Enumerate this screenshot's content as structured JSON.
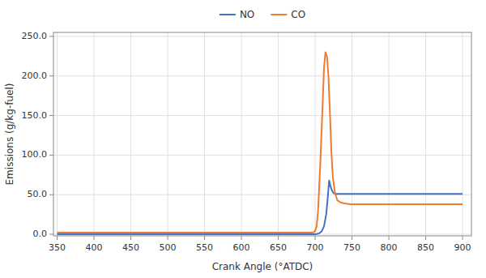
{
  "chart_data": {
    "type": "line",
    "xlabel": "Crank Angle (°ATDC)",
    "ylabel": "Emissions (g/kg-fuel)",
    "xlim": [
      345,
      912
    ],
    "ylim": [
      -2,
      255
    ],
    "xticks": [
      350,
      400,
      450,
      500,
      550,
      600,
      650,
      700,
      750,
      800,
      850,
      900
    ],
    "yticks": [
      {
        "value": 0.0,
        "label": "0.0"
      },
      {
        "value": 50.0,
        "label": "50.0"
      },
      {
        "value": 100.0,
        "label": "100.0"
      },
      {
        "value": 150.0,
        "label": "150.0"
      },
      {
        "value": 200.0,
        "label": "200.0"
      },
      {
        "value": 250.0,
        "label": "250.0"
      }
    ],
    "grid": true,
    "legend": "top",
    "series": [
      {
        "name": "NO",
        "color": "#4472C4",
        "x": [
          350,
          690,
          696,
          700,
          703,
          706,
          709,
          712,
          715,
          717,
          719,
          721,
          723,
          725,
          728,
          732,
          738,
          745,
          760,
          780,
          800,
          850,
          900
        ],
        "values": [
          0,
          0,
          0,
          0,
          0.5,
          1.5,
          4,
          10,
          25,
          45,
          68,
          60,
          55,
          52,
          51,
          51,
          51,
          51,
          51,
          51,
          51,
          51,
          51
        ]
      },
      {
        "name": "CO",
        "color": "#ED7D31",
        "x": [
          350,
          690,
          695,
          698,
          700,
          702,
          704,
          707,
          710,
          712,
          714,
          716,
          718,
          720,
          722,
          724,
          727,
          730,
          735,
          740,
          748,
          760,
          780,
          800,
          850,
          900
        ],
        "values": [
          2,
          2,
          2,
          2.5,
          4,
          10,
          30,
          90,
          160,
          210,
          230,
          225,
          200,
          155,
          105,
          72,
          52,
          43,
          40,
          39,
          38,
          38,
          38,
          38,
          38,
          38
        ]
      }
    ]
  }
}
